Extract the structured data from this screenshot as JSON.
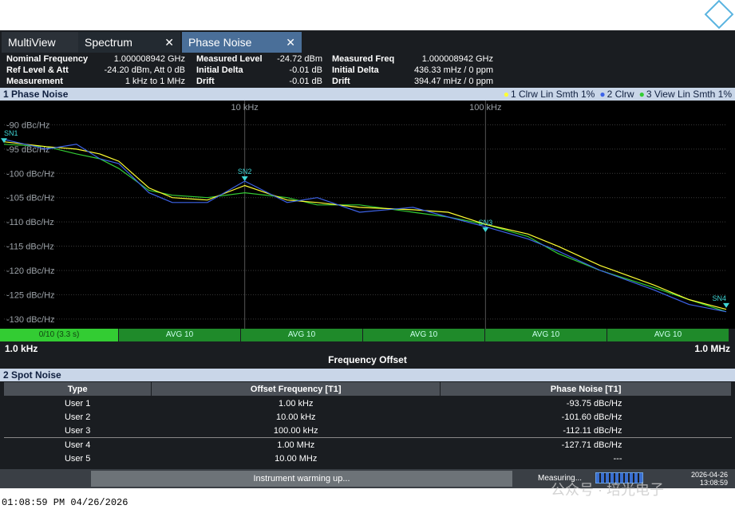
{
  "tabs": [
    "MultiView",
    "Spectrum",
    "Phase Noise"
  ],
  "info": [
    [
      [
        "Nominal Frequency",
        "1.000008942 GHz"
      ],
      [
        "Ref Level & Att",
        "-24.20 dBm, Att 0 dB"
      ],
      [
        "Measurement",
        "1 kHz to 1 MHz"
      ]
    ],
    [
      [
        "Measured Level",
        "-24.72 dBm"
      ],
      [
        "Initial Delta",
        "-0.01 dB"
      ],
      [
        "Drift",
        "-0.01 dB"
      ]
    ],
    [
      [
        "Measured Freq",
        "1.000008942 GHz"
      ],
      [
        "Initial Delta",
        "436.33 mHz / 0 ppm"
      ],
      [
        "Drift",
        "394.47 mHz / 0 ppm"
      ]
    ]
  ],
  "chart_data": {
    "type": "line",
    "title": "1 Phase Noise",
    "x_label": "Frequency Offset",
    "x_start_label": "1.0 kHz",
    "x_end_label": "1.0 MHz",
    "log_x": true,
    "grid": true,
    "x": [
      1000,
      1500,
      2000,
      2500,
      3000,
      4000,
      5000,
      7000,
      10000,
      15000,
      20000,
      30000,
      50000,
      70000,
      100000,
      150000,
      200000,
      300000,
      500000,
      700000,
      1000000
    ],
    "series": [
      {
        "name": "1 Clrw Lin Smth 1%",
        "color": "#ffff33",
        "values": [
          -93.5,
          -94.5,
          -95,
          -96,
          -97.5,
          -103,
          -105,
          -105.5,
          -102.5,
          -105.5,
          -106,
          -107,
          -107.5,
          -108,
          -110.5,
          -112.5,
          -115,
          -119,
          -123,
          -126,
          -128
        ]
      },
      {
        "name": "2 Clrw",
        "color": "#3d63e8",
        "values": [
          -93,
          -95,
          -94,
          -97,
          -98,
          -104,
          -106,
          -106,
          -101.6,
          -106,
          -105,
          -108,
          -107,
          -109,
          -111,
          -113.5,
          -116,
          -120,
          -124,
          -127,
          -128.5
        ]
      },
      {
        "name": "3 View Lin Smth 1%",
        "color": "#33cc33",
        "values": [
          -94,
          -94.5,
          -96,
          -97,
          -99,
          -103.5,
          -104.5,
          -105,
          -104,
          -105,
          -106.5,
          -106.5,
          -108,
          -109,
          -110.5,
          -113,
          -116.5,
          -120,
          -123.5,
          -126,
          -128.5
        ]
      }
    ],
    "markers": [
      {
        "label": "SN1",
        "x": 1000,
        "y": -93.75
      },
      {
        "label": "SN2",
        "x": 10000,
        "y": -101.6
      },
      {
        "label": "SN3",
        "x": 100000,
        "y": -112.11
      },
      {
        "label": "SN4",
        "x": 1000000,
        "y": -127.71
      }
    ],
    "xlim": [
      1000,
      1000000
    ],
    "ylim": [
      -132,
      -85
    ],
    "xticks": [
      {
        "value": 10000,
        "label": "10 kHz"
      },
      {
        "value": 100000,
        "label": "100 kHz"
      }
    ],
    "yticks": [
      {
        "value": -90,
        "label": "-90 dBc/Hz"
      },
      {
        "value": -95,
        "label": "-95 dBc/Hz"
      },
      {
        "value": -100,
        "label": "-100 dBc/Hz"
      },
      {
        "value": -105,
        "label": "-105 dBc/Hz"
      },
      {
        "value": -110,
        "label": "-110 dBc/Hz"
      },
      {
        "value": -115,
        "label": "-115 dBc/Hz"
      },
      {
        "value": -120,
        "label": "-120 dBc/Hz"
      },
      {
        "value": -125,
        "label": "-125 dBc/Hz"
      },
      {
        "value": -130,
        "label": "-130 dBc/Hz"
      }
    ]
  },
  "status_bar": [
    "0/10 (3.3 s)",
    "AVG 10",
    "AVG 10",
    "AVG 10",
    "AVG 10",
    "AVG 10"
  ],
  "table": {
    "title": "2 Spot Noise",
    "columns": [
      "Type",
      "Offset Frequency [T1]",
      "Phase Noise [T1]"
    ],
    "rows": [
      [
        "User 1",
        "1.00 kHz",
        "-93.75 dBc/Hz"
      ],
      [
        "User 2",
        "10.00 kHz",
        "-101.60 dBc/Hz"
      ],
      [
        "User 3",
        "100.00 kHz",
        "-112.11 dBc/Hz"
      ],
      [
        "User 4",
        "1.00 MHz",
        "-127.71 dBc/Hz"
      ],
      [
        "User 5",
        "10.00 MHz",
        "---"
      ]
    ]
  },
  "footer": {
    "message": "Instrument warming up...",
    "measuring": "Measuring...",
    "date": "2026-04-26",
    "time": "13:08:59",
    "watermark": "公众号 · 培光电子"
  },
  "timestamp": "01:08:59 PM  04/26/2026"
}
